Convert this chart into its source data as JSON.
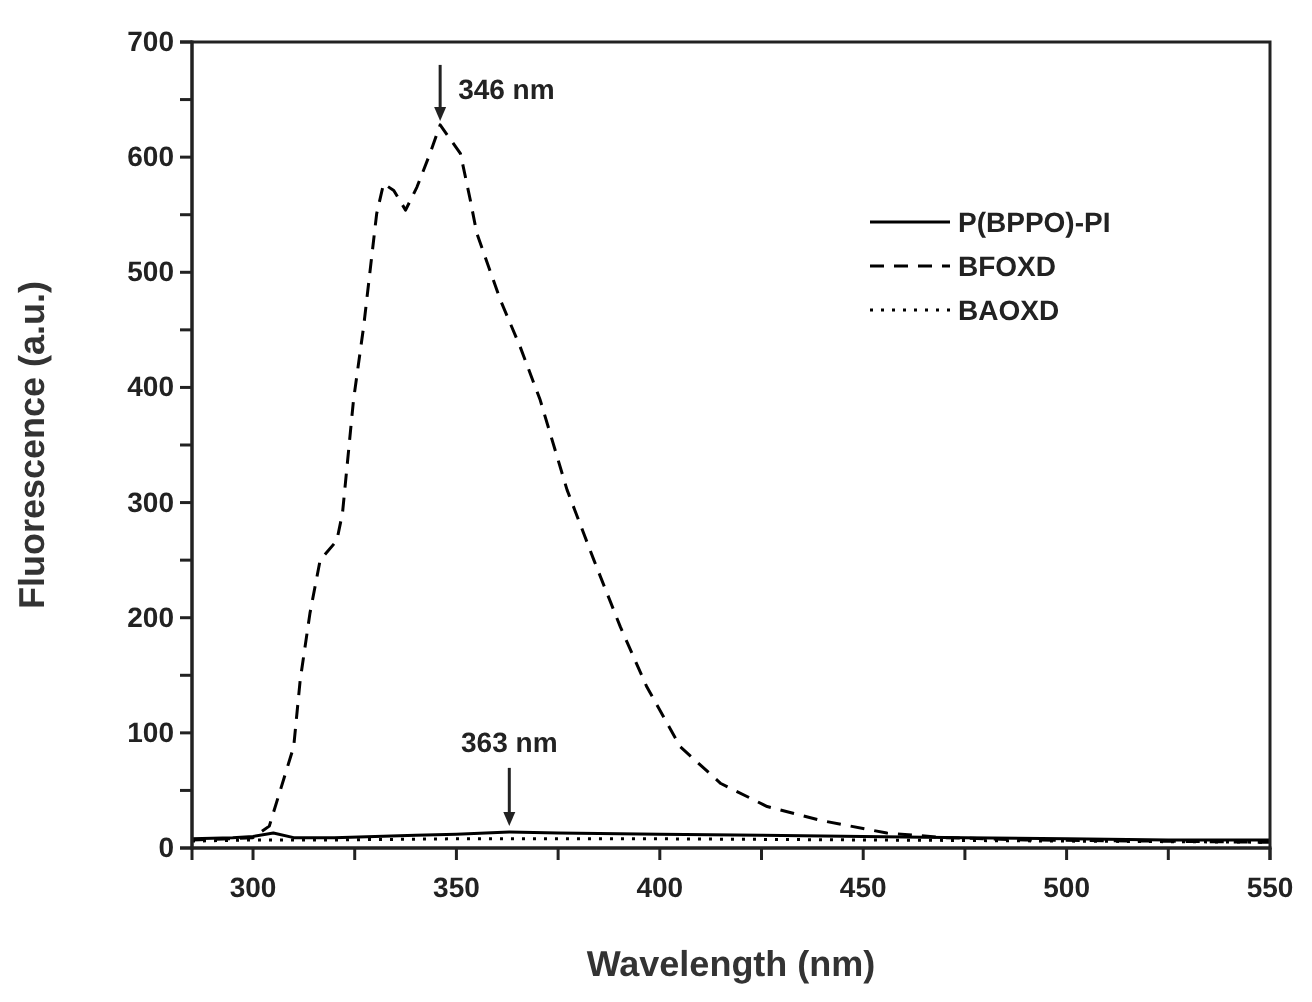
{
  "chart_data": {
    "type": "line",
    "xlabel": "Wavelength (nm)",
    "ylabel": "Fluorescence (a.u.)",
    "xlim": [
      285,
      550
    ],
    "ylim": [
      0,
      700
    ],
    "xticks": [
      300,
      {
        "value": 325,
        "label": null
      },
      350,
      {
        "value": 375,
        "label": null
      },
      400,
      {
        "value": 425,
        "label": null
      },
      450,
      {
        "value": 475,
        "label": null
      },
      500,
      {
        "value": 525,
        "label": null
      },
      550
    ],
    "yticks": [
      0,
      {
        "value": 50,
        "label": null
      },
      100,
      {
        "value": 150,
        "label": null
      },
      200,
      {
        "value": 250,
        "label": null
      },
      300,
      {
        "value": 350,
        "label": null
      },
      400,
      {
        "value": 450,
        "label": null
      },
      500,
      {
        "value": 550,
        "label": null
      },
      600,
      {
        "value": 650,
        "label": null
      },
      700
    ],
    "legend": "top right",
    "grid": false,
    "marker": "none",
    "annotations": [
      {
        "text": "346 nm",
        "x": 346,
        "y": 628
      },
      {
        "text": "363 nm",
        "x": 363,
        "y": 14
      }
    ],
    "series": [
      {
        "name": "P(BPPO)-PI",
        "color": "#000000",
        "line_style": "solid",
        "x": [
          285,
          295,
          300,
          305,
          310,
          320,
          330,
          340,
          350,
          363,
          375,
          400,
          425,
          450,
          475,
          500,
          525,
          550
        ],
        "values": [
          8,
          9,
          10,
          13,
          9,
          9,
          10,
          11,
          12,
          14,
          13,
          12,
          11,
          10,
          9,
          8,
          7,
          7
        ]
      },
      {
        "name": "BFOXD",
        "color": "#000000",
        "line_style": "dashed",
        "x": [
          285,
          295,
          300,
          304,
          310,
          311.6,
          314,
          316.5,
          320.6,
          322,
          324.7,
          327.2,
          330.4,
          332.1,
          334.6,
          337.5,
          340.3,
          343.5,
          346,
          351,
          353.4,
          355,
          360.8,
          365.7,
          370.6,
          377.2,
          383.8,
          390.3,
          396.8,
          405,
          415,
          426.4,
          439.5,
          455.8,
          470,
          490,
          520,
          550
        ],
        "values": [
          7,
          8,
          9,
          19,
          88,
          146,
          204,
          250,
          267,
          291,
          389,
          453,
          551,
          577,
          571,
          554,
          574,
          603,
          628,
          603,
          563,
          534,
          476,
          435,
          389,
          311,
          250,
          192,
          140,
          88,
          56,
          36,
          24,
          13,
          9,
          7,
          6,
          5
        ]
      },
      {
        "name": "BAOXD",
        "color": "#000000",
        "line_style": "dotted",
        "x": [
          285,
          300,
          320,
          350,
          400,
          450,
          500,
          550
        ],
        "values": [
          6,
          7,
          7,
          8,
          8,
          7,
          6,
          5
        ]
      }
    ]
  }
}
